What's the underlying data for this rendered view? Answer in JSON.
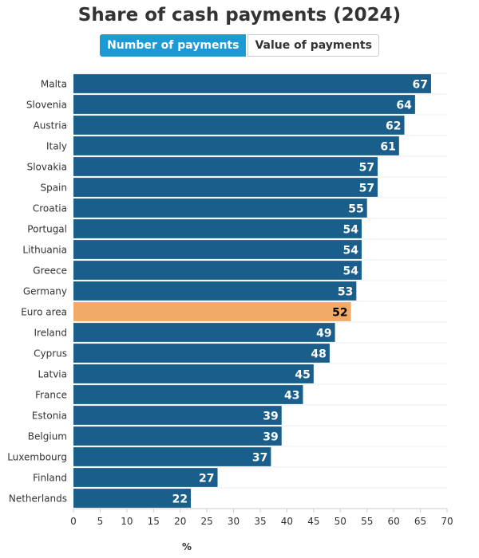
{
  "toggle": {
    "active_label": "Number of payments",
    "inactive_label": "Value of payments"
  },
  "colors": {
    "bar": "#1a5f8b",
    "highlight": "#f1ab67",
    "bar_label": "#ffffff",
    "highlight_label": "#000000",
    "active_button": "#1b9ad6"
  },
  "chart_data": {
    "type": "bar",
    "orientation": "horizontal",
    "title": "Share of cash payments (2024)",
    "xlabel": "%",
    "ylabel": "",
    "xlim": [
      0,
      70
    ],
    "xticks": [
      0,
      5,
      10,
      15,
      20,
      25,
      30,
      35,
      40,
      45,
      50,
      55,
      60,
      65,
      70
    ],
    "grid": true,
    "highlight": "Euro area",
    "categories": [
      "Malta",
      "Slovenia",
      "Austria",
      "Italy",
      "Slovakia",
      "Spain",
      "Croatia",
      "Portugal",
      "Lithuania",
      "Greece",
      "Germany",
      "Euro area",
      "Ireland",
      "Cyprus",
      "Latvia",
      "France",
      "Estonia",
      "Belgium",
      "Luxembourg",
      "Finland",
      "Netherlands"
    ],
    "values": [
      67,
      64,
      62,
      61,
      57,
      57,
      55,
      54,
      54,
      54,
      53,
      52,
      49,
      48,
      45,
      43,
      39,
      39,
      37,
      27,
      22
    ]
  }
}
